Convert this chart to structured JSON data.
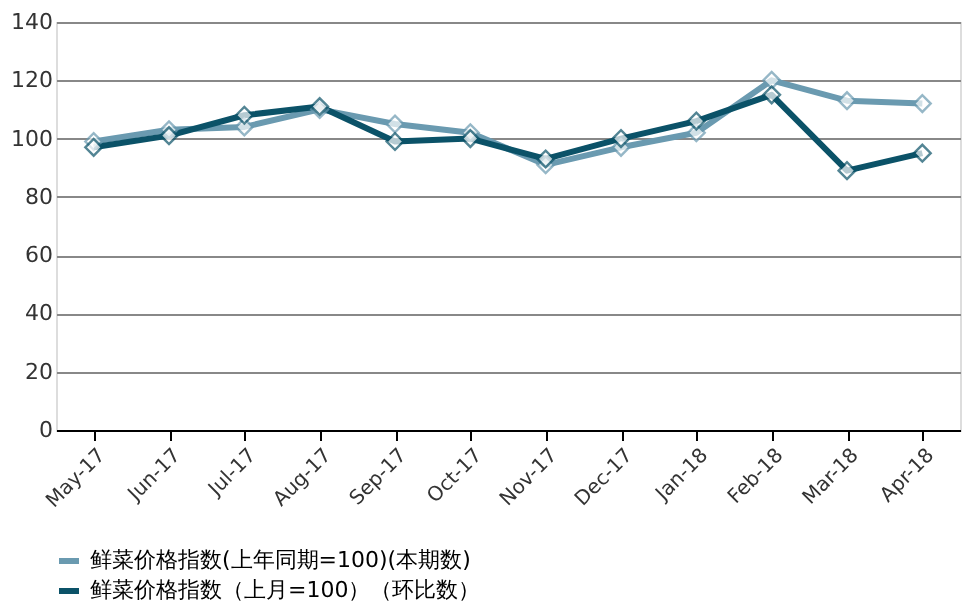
{
  "chart_data": {
    "type": "line",
    "categories": [
      "May-17",
      "Jun-17",
      "Jul-17",
      "Aug-17",
      "Sep-17",
      "Oct-17",
      "Nov-17",
      "Dec-17",
      "Jan-18",
      "Feb-18",
      "Mar-18",
      "Apr-18"
    ],
    "series": [
      {
        "name": "鲜菜价格指数(上年同期=100)(本期数)",
        "color": "#6a9ab0",
        "values": [
          99,
          103,
          104,
          110,
          105,
          102,
          91,
          97,
          102,
          120,
          113,
          112
        ]
      },
      {
        "name": "鲜菜价格指数（上月=100）（环比数）",
        "color": "#0b5268",
        "values": [
          97,
          101,
          108,
          111,
          99,
          100,
          93,
          100,
          106,
          115,
          89,
          95
        ]
      }
    ],
    "ylim": [
      0,
      140
    ],
    "yticks": [
      0,
      20,
      40,
      60,
      80,
      100,
      120,
      140
    ],
    "grid": "y",
    "legend": "bottom",
    "marker": "diamond",
    "line_style": "solid"
  }
}
